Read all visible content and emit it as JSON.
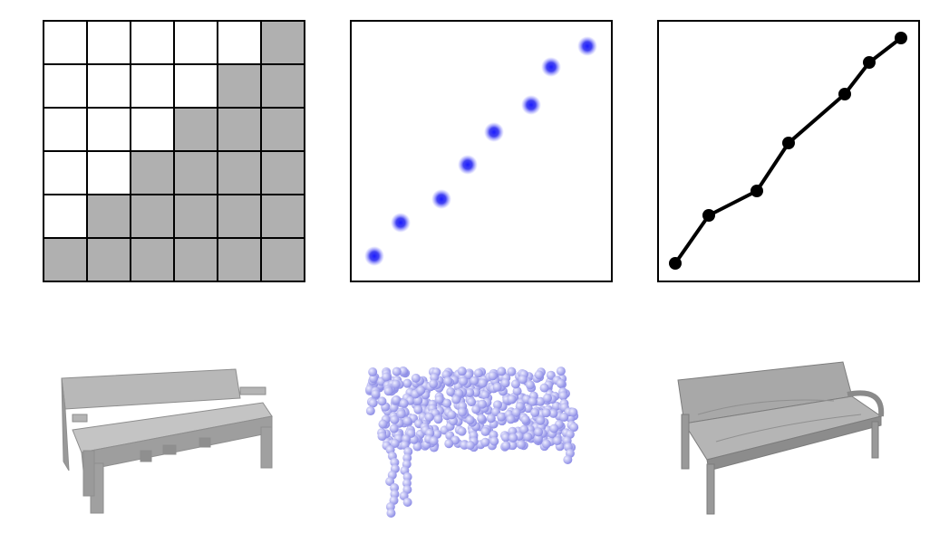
{
  "colors": {
    "grid_fill": "#b0b0b0",
    "grid_line": "#000000",
    "point_color": "#2a2af0",
    "line_color": "#000000",
    "voxel_bench": "#a9a9a9",
    "pointcloud_bench": "#b4b4f4",
    "mesh_bench": "#a6a6a6"
  },
  "voxel_grid": {
    "occupancy": [
      [
        0,
        0,
        0,
        0,
        0,
        1
      ],
      [
        0,
        0,
        0,
        0,
        1,
        1
      ],
      [
        0,
        0,
        0,
        1,
        1,
        1
      ],
      [
        0,
        0,
        1,
        1,
        1,
        1
      ],
      [
        0,
        1,
        1,
        1,
        1,
        1
      ],
      [
        1,
        1,
        1,
        1,
        1,
        1
      ]
    ]
  },
  "icons": {
    "voxel_bench": "voxel-bench-render",
    "pointcloud_bench": "point-cloud-bench-render",
    "mesh_bench": "mesh-bench-render"
  }
}
